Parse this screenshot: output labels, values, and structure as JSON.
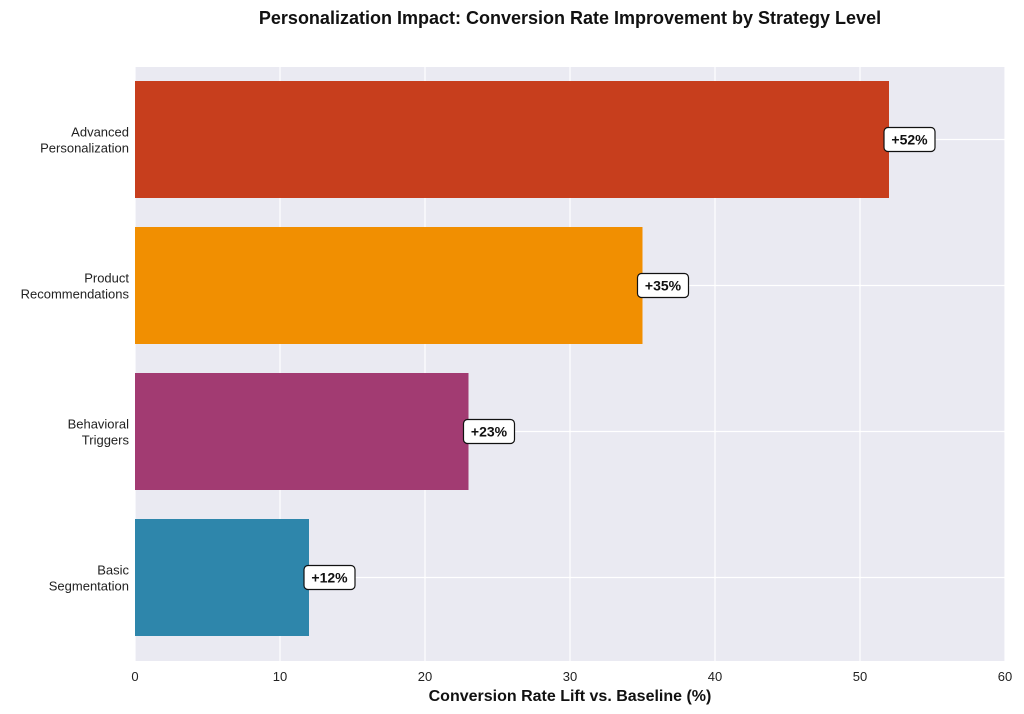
{
  "chart_data": {
    "type": "bar",
    "orientation": "horizontal",
    "title": "Personalization Impact: Conversion Rate Improvement by Strategy Level",
    "xlabel": "Conversion Rate Lift vs. Baseline (%)",
    "ylabel": "",
    "xlim": [
      0,
      60
    ],
    "xticks": [
      "0",
      "10",
      "20",
      "30",
      "40",
      "50",
      "60"
    ],
    "grid": true,
    "categories": [
      [
        "Basic",
        "Segmentation"
      ],
      [
        "Behavioral",
        "Triggers"
      ],
      [
        "Product",
        "Recommendations"
      ],
      [
        "Advanced",
        "Personalization"
      ]
    ],
    "values": [
      12,
      23,
      35,
      52
    ],
    "labels": [
      "+12%",
      "+23%",
      "+35%",
      "+52%"
    ],
    "colors": [
      "#2E86AB",
      "#A23B72",
      "#F18F01",
      "#C73E1D"
    ]
  }
}
